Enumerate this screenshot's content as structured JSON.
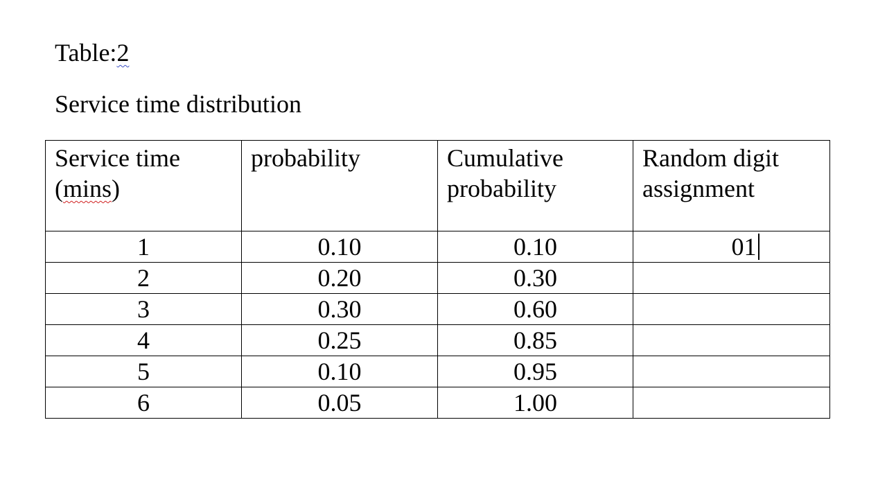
{
  "document": {
    "title_prefix": "Table:",
    "title_number": "2",
    "subtitle": "Service time distribution"
  },
  "table": {
    "headers": [
      {
        "line1": "Service time",
        "line2_pre": "(",
        "line2_word": "mins",
        "line2_post": ")"
      },
      {
        "line1": "probability",
        "line2": ""
      },
      {
        "line1": "Cumulative",
        "line2": "probability"
      },
      {
        "line1": "Random digit",
        "line2": "assignment"
      }
    ],
    "rows": [
      {
        "service_time": "1",
        "probability": "0.10",
        "cumulative": "0.10",
        "random_digits": "01"
      },
      {
        "service_time": "2",
        "probability": "0.20",
        "cumulative": "0.30",
        "random_digits": ""
      },
      {
        "service_time": "3",
        "probability": "0.30",
        "cumulative": "0.60",
        "random_digits": ""
      },
      {
        "service_time": "4",
        "probability": "0.25",
        "cumulative": "0.85",
        "random_digits": ""
      },
      {
        "service_time": "5",
        "probability": "0.10",
        "cumulative": "0.95",
        "random_digits": ""
      },
      {
        "service_time": "6",
        "probability": "0.05",
        "cumulative": "1.00",
        "random_digits": ""
      }
    ]
  },
  "colors": {
    "text": "#000000",
    "spell_check_blue": "#3b4fc4",
    "spell_check_red": "#d02020"
  }
}
